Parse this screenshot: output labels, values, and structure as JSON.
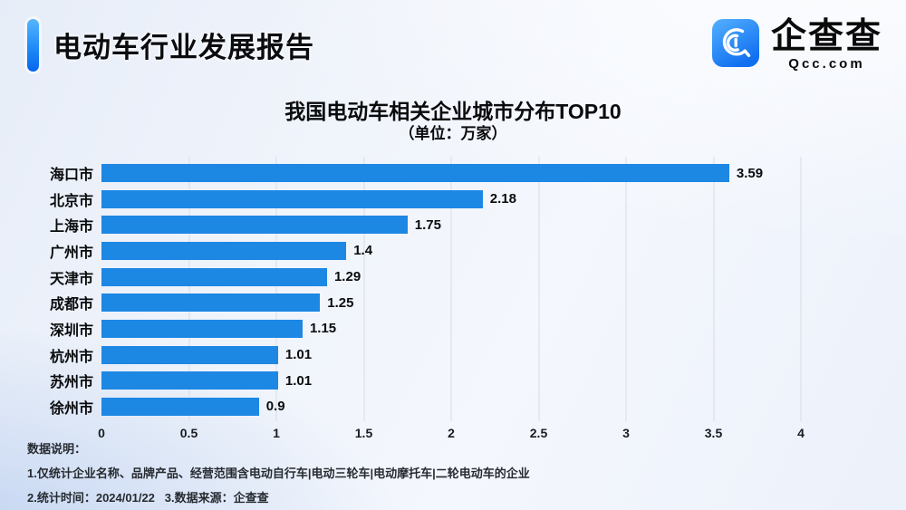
{
  "header": {
    "title": "电动车行业发展报告",
    "logo": {
      "name": "企查查",
      "domain": "Qcc.com"
    }
  },
  "chart_data": {
    "type": "bar",
    "orientation": "horizontal",
    "title": "我国电动车相关企业城市分布TOP10",
    "subtitle": "（单位：万家）",
    "unit": "万家",
    "categories": [
      "海口市",
      "北京市",
      "上海市",
      "广州市",
      "天津市",
      "成都市",
      "深圳市",
      "杭州市",
      "苏州市",
      "徐州市"
    ],
    "values": [
      3.59,
      2.18,
      1.75,
      1.4,
      1.29,
      1.25,
      1.15,
      1.01,
      1.01,
      0.9
    ],
    "value_labels": [
      "3.59",
      "2.18",
      "1.75",
      "1.4",
      "1.29",
      "1.25",
      "1.15",
      "1.01",
      "1.01",
      "0.9"
    ],
    "xlim": [
      0,
      4
    ],
    "x_ticks": [
      "0",
      "0.5",
      "1",
      "1.5",
      "2",
      "2.5",
      "3",
      "3.5",
      "4"
    ],
    "grid": true,
    "legend": "none",
    "bar_color": "#1d87e4",
    "gridline_color": "#d8dce5"
  },
  "footer": {
    "notes_title": "数据说明：",
    "note1": "1.仅统计企业名称、品牌产品、经营范围含电动自行车|电动三轮车|电动摩托车|二轮电动车的企业",
    "note2": "2.统计时间：2024/01/22   3.数据来源：企查查"
  },
  "colors": {
    "accent_gradient_top": "#57b5ff",
    "accent_gradient_bottom": "#0765ee",
    "bar": "#1d87e4",
    "background_tint": "#eef2fa",
    "text": "#0a0b0d"
  }
}
